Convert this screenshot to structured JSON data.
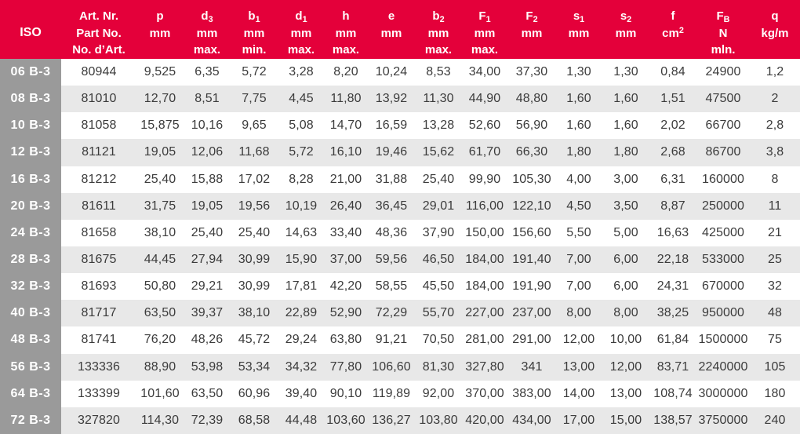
{
  "colors": {
    "header_bg": "#E4003A",
    "header_text": "#FFFFFF",
    "iso_col_bg": "#9A9A9A",
    "iso_col_text": "#FFFFFF",
    "row_bg": "#FFFFFF",
    "row_alt_bg": "#E8E8E8",
    "cell_text": "#3B3B3B"
  },
  "table": {
    "columns": [
      {
        "id": "iso",
        "lines": [
          "ISO"
        ]
      },
      {
        "id": "art-nr",
        "lines": [
          "Art. Nr.",
          "Part No.",
          "No. d’Art."
        ]
      },
      {
        "id": "p",
        "lines": [
          "p",
          "mm"
        ]
      },
      {
        "id": "d3",
        "lines": [
          "d_3",
          "mm",
          "max."
        ]
      },
      {
        "id": "b1",
        "lines": [
          "b_1",
          "mm",
          "min."
        ]
      },
      {
        "id": "d1",
        "lines": [
          "d_1",
          "mm",
          "max."
        ]
      },
      {
        "id": "h",
        "lines": [
          "h",
          "mm",
          "max."
        ]
      },
      {
        "id": "e",
        "lines": [
          "e",
          "mm"
        ]
      },
      {
        "id": "b2",
        "lines": [
          "b_2",
          "mm",
          "max."
        ]
      },
      {
        "id": "f1",
        "lines": [
          "F_1",
          "mm",
          "max."
        ]
      },
      {
        "id": "f2",
        "lines": [
          "F_2",
          "mm"
        ]
      },
      {
        "id": "s1",
        "lines": [
          "s_1",
          "mm"
        ]
      },
      {
        "id": "s2",
        "lines": [
          "s_2",
          "mm"
        ]
      },
      {
        "id": "f",
        "lines": [
          "f",
          "cm^2"
        ]
      },
      {
        "id": "fb",
        "lines": [
          "F_B",
          "N",
          "mln."
        ]
      },
      {
        "id": "q",
        "lines": [
          "q",
          "kg/m"
        ]
      }
    ],
    "rows": [
      {
        "iso": "06 B-3",
        "values": [
          "80944",
          "9,525",
          "6,35",
          "5,72",
          "3,28",
          "8,20",
          "10,24",
          "8,53",
          "34,00",
          "37,30",
          "1,30",
          "1,30",
          "0,84",
          "24900",
          "1,2"
        ]
      },
      {
        "iso": "08 B-3",
        "values": [
          "81010",
          "12,70",
          "8,51",
          "7,75",
          "4,45",
          "11,80",
          "13,92",
          "11,30",
          "44,90",
          "48,80",
          "1,60",
          "1,60",
          "1,51",
          "47500",
          "2"
        ]
      },
      {
        "iso": "10 B-3",
        "values": [
          "81058",
          "15,875",
          "10,16",
          "9,65",
          "5,08",
          "14,70",
          "16,59",
          "13,28",
          "52,60",
          "56,90",
          "1,60",
          "1,60",
          "2,02",
          "66700",
          "2,8"
        ]
      },
      {
        "iso": "12 B-3",
        "values": [
          "81121",
          "19,05",
          "12,06",
          "11,68",
          "5,72",
          "16,10",
          "19,46",
          "15,62",
          "61,70",
          "66,30",
          "1,80",
          "1,80",
          "2,68",
          "86700",
          "3,8"
        ]
      },
      {
        "iso": "16 B-3",
        "values": [
          "81212",
          "25,40",
          "15,88",
          "17,02",
          "8,28",
          "21,00",
          "31,88",
          "25,40",
          "99,90",
          "105,30",
          "4,00",
          "3,00",
          "6,31",
          "160000",
          "8"
        ]
      },
      {
        "iso": "20 B-3",
        "values": [
          "81611",
          "31,75",
          "19,05",
          "19,56",
          "10,19",
          "26,40",
          "36,45",
          "29,01",
          "116,00",
          "122,10",
          "4,50",
          "3,50",
          "8,87",
          "250000",
          "11"
        ]
      },
      {
        "iso": "24 B-3",
        "values": [
          "81658",
          "38,10",
          "25,40",
          "25,40",
          "14,63",
          "33,40",
          "48,36",
          "37,90",
          "150,00",
          "156,60",
          "5,50",
          "5,00",
          "16,63",
          "425000",
          "21"
        ]
      },
      {
        "iso": "28 B-3",
        "values": [
          "81675",
          "44,45",
          "27,94",
          "30,99",
          "15,90",
          "37,00",
          "59,56",
          "46,50",
          "184,00",
          "191,40",
          "7,00",
          "6,00",
          "22,18",
          "533000",
          "25"
        ]
      },
      {
        "iso": "32 B-3",
        "values": [
          "81693",
          "50,80",
          "29,21",
          "30,99",
          "17,81",
          "42,20",
          "58,55",
          "45,50",
          "184,00",
          "191,90",
          "7,00",
          "6,00",
          "24,31",
          "670000",
          "32"
        ]
      },
      {
        "iso": "40 B-3",
        "values": [
          "81717",
          "63,50",
          "39,37",
          "38,10",
          "22,89",
          "52,90",
          "72,29",
          "55,70",
          "227,00",
          "237,00",
          "8,00",
          "8,00",
          "38,25",
          "950000",
          "48"
        ]
      },
      {
        "iso": "48 B-3",
        "values": [
          "81741",
          "76,20",
          "48,26",
          "45,72",
          "29,24",
          "63,80",
          "91,21",
          "70,50",
          "281,00",
          "291,00",
          "12,00",
          "10,00",
          "61,84",
          "1500000",
          "75"
        ]
      },
      {
        "iso": "56 B-3",
        "values": [
          "133336",
          "88,90",
          "53,98",
          "53,34",
          "34,32",
          "77,80",
          "106,60",
          "81,30",
          "327,80",
          "341",
          "13,00",
          "12,00",
          "83,71",
          "2240000",
          "105"
        ]
      },
      {
        "iso": "64 B-3",
        "values": [
          "133399",
          "101,60",
          "63,50",
          "60,96",
          "39,40",
          "90,10",
          "119,89",
          "92,00",
          "370,00",
          "383,00",
          "14,00",
          "13,00",
          "108,74",
          "3000000",
          "180"
        ]
      },
      {
        "iso": "72 B-3",
        "values": [
          "327820",
          "114,30",
          "72,39",
          "68,58",
          "44,48",
          "103,60",
          "136,27",
          "103,80",
          "420,00",
          "434,00",
          "17,00",
          "15,00",
          "138,57",
          "3750000",
          "240"
        ]
      }
    ]
  }
}
